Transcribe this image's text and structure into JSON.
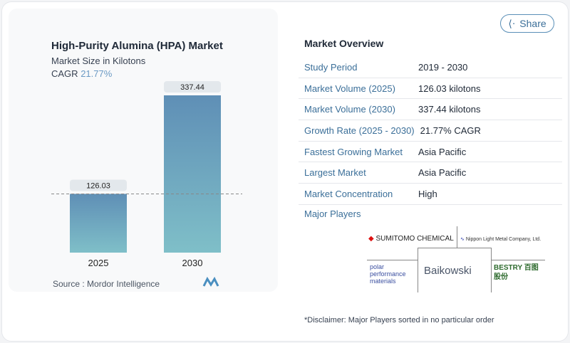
{
  "header": {
    "share_label": "Share",
    "share_icon": "share-icon"
  },
  "chart_data": {
    "type": "bar",
    "title": "High-Purity Alumina (HPA) Market",
    "subtitle": "Market Size in Kilotons",
    "cagr_label": "CAGR",
    "cagr_value": "21.77%",
    "categories": [
      "2025",
      "2030"
    ],
    "values": [
      126.03,
      337.44
    ],
    "value_labels": [
      "126.03",
      "337.44"
    ],
    "colors": [
      "#5f8fb6",
      "#7fbfc8"
    ],
    "source": "Source : Mordor Intelligence",
    "ylim": [
      0,
      337.44
    ],
    "grid": false
  },
  "overview": {
    "title": "Market Overview",
    "rows": [
      {
        "k": "Study Period",
        "v": "2019 - 2030"
      },
      {
        "k": "Market Volume (2025)",
        "v": "126.03 kilotons"
      },
      {
        "k": "Market Volume (2030)",
        "v": "337.44 kilotons"
      },
      {
        "k": "Growth Rate (2025 - 2030)",
        "v": "21.77% CAGR"
      },
      {
        "k": "Fastest Growing Market",
        "v": "Asia Pacific"
      },
      {
        "k": "Largest Market",
        "v": "Asia Pacific"
      },
      {
        "k": "Market Concentration",
        "v": "High"
      }
    ],
    "major_players_label": "Major Players",
    "players": [
      "SUMITOMO CHEMICAL",
      "Nippon Light Metal Company, Ltd.",
      "polar performance materials",
      "Baikowski",
      "BESTRY 百图股份"
    ],
    "disclaimer": "*Disclaimer: Major Players sorted in no particular order"
  }
}
